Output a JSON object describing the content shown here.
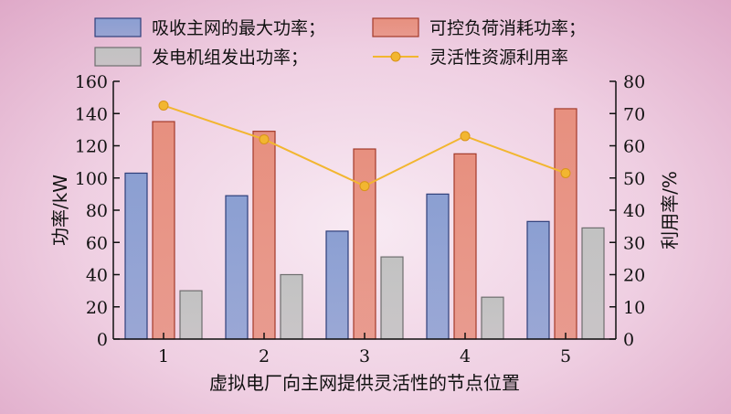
{
  "chart_data": {
    "type": "bar",
    "categories": [
      "1",
      "2",
      "3",
      "4",
      "5"
    ],
    "series": [
      {
        "name": "吸收主网的最大功率；",
        "axis": "left",
        "kind": "bar",
        "color": "#8b9fd2",
        "stroke": "#2f3f7a",
        "values": [
          103,
          89,
          67,
          90,
          73
        ]
      },
      {
        "name": "可控负荷消耗功率；",
        "axis": "left",
        "kind": "bar",
        "color": "#e7907f",
        "stroke": "#a33a2a",
        "values": [
          135,
          129,
          118,
          115,
          143
        ]
      },
      {
        "name": "发电机组发出功率；",
        "axis": "left",
        "kind": "bar",
        "color": "#c2c2c2",
        "stroke": "#6e6e6e",
        "values": [
          30,
          40,
          51,
          26,
          69
        ]
      },
      {
        "name": "灵活性资源利用率",
        "axis": "right",
        "kind": "line",
        "color": "#f2b630",
        "values": [
          72.5,
          62,
          47.5,
          63,
          51.5
        ]
      }
    ],
    "xlabel": "虚拟电厂向主网提供灵活性的节点位置",
    "ylabel": "功率/kW",
    "y2label": "利用率/%",
    "ylim": [
      0,
      160
    ],
    "y2lim": [
      0,
      80
    ],
    "yticks": [
      "0",
      "20",
      "40",
      "60",
      "80",
      "100",
      "120",
      "140",
      "160"
    ],
    "y2ticks": [
      "0",
      "10",
      "20",
      "30",
      "40",
      "50",
      "60",
      "70",
      "80"
    ],
    "legend_position": "top",
    "grid": false
  }
}
